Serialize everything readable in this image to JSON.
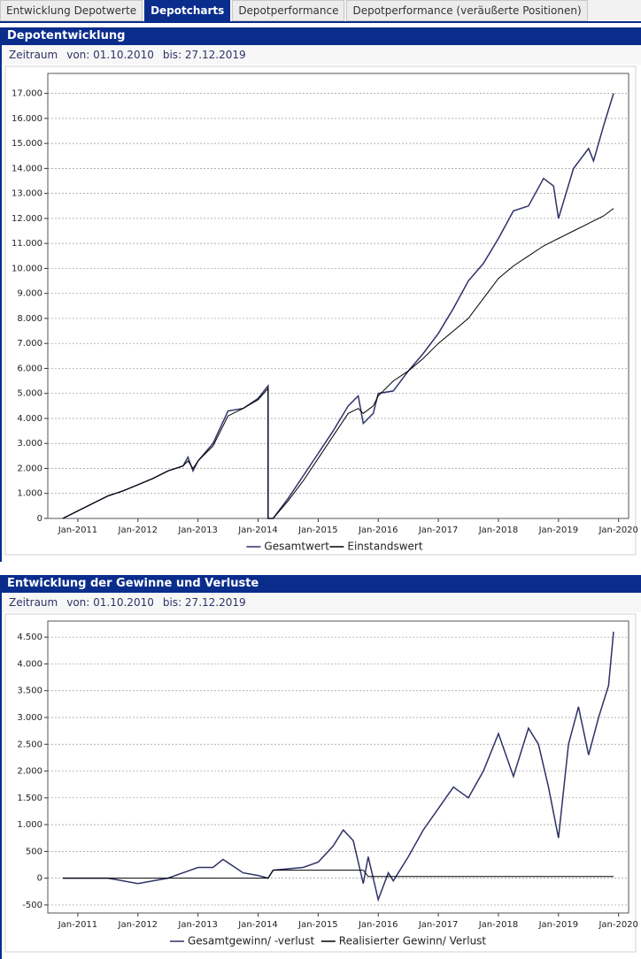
{
  "tabs": [
    {
      "label": "Entwicklung Depotwerte"
    },
    {
      "label": "Depotcharts"
    },
    {
      "label": "Depotperformance"
    },
    {
      "label": "Depotperformance (veräußerte Positionen)"
    }
  ],
  "active_tab": 1,
  "chart_data": [
    {
      "type": "line",
      "title": "Depotentwicklung",
      "period_label": "Zeitraum",
      "from_label": "von: 01.10.2010",
      "to_label": "bis: 27.12.2019",
      "x": [
        "2010-10",
        "2011-01",
        "2011-04",
        "2011-07",
        "2011-10",
        "2012-01",
        "2012-04",
        "2012-07",
        "2012-10",
        "2012-11",
        "2012-12",
        "2013-01",
        "2013-04",
        "2013-07",
        "2013-10",
        "2014-01",
        "2014-03",
        "2014-03",
        "2014-04",
        "2014-07",
        "2014-10",
        "2015-01",
        "2015-04",
        "2015-07",
        "2015-09",
        "2015-10",
        "2015-12",
        "2016-01",
        "2016-04",
        "2016-07",
        "2016-10",
        "2017-01",
        "2017-04",
        "2017-07",
        "2017-10",
        "2018-01",
        "2018-04",
        "2018-07",
        "2018-10",
        "2018-12",
        "2019-01",
        "2019-04",
        "2019-07",
        "2019-08",
        "2019-10",
        "2019-12"
      ],
      "series": [
        {
          "name": "Gesamtwert",
          "color": "#2e3266",
          "values": [
            0,
            300,
            600,
            900,
            1100,
            1350,
            1600,
            1900,
            2100,
            2450,
            1900,
            2300,
            3000,
            4300,
            4400,
            4800,
            5300,
            0,
            0,
            800,
            1700,
            2600,
            3500,
            4500,
            4900,
            3800,
            4200,
            5000,
            5100,
            5900,
            6600,
            7400,
            8400,
            9500,
            10200,
            11200,
            12300,
            12500,
            13600,
            13300,
            12000,
            14000,
            14800,
            14300,
            15700,
            17000
          ]
        },
        {
          "name": "Einstandswert",
          "color": "#000000",
          "values": [
            0,
            300,
            600,
            900,
            1100,
            1350,
            1600,
            1900,
            2100,
            2300,
            2000,
            2300,
            2900,
            4100,
            4400,
            4750,
            5200,
            0,
            0,
            700,
            1500,
            2400,
            3300,
            4200,
            4400,
            4200,
            4500,
            4900,
            5500,
            5900,
            6400,
            7000,
            7500,
            8000,
            8800,
            9600,
            10100,
            10500,
            10900,
            11100,
            11200,
            11500,
            11800,
            11900,
            12100,
            12400
          ]
        }
      ],
      "xlim": [
        "2010-07",
        "2020-03"
      ],
      "xticks": [
        {
          "value": "2011-01",
          "label": "Jan-2011"
        },
        {
          "value": "2012-01",
          "label": "Jan-2012"
        },
        {
          "value": "2013-01",
          "label": "Jan-2013"
        },
        {
          "value": "2014-01",
          "label": "Jan-2014"
        },
        {
          "value": "2015-01",
          "label": "Jan-2015"
        },
        {
          "value": "2016-01",
          "label": "Jan-2016"
        },
        {
          "value": "2017-01",
          "label": "Jan-2017"
        },
        {
          "value": "2018-01",
          "label": "Jan-2018"
        },
        {
          "value": "2019-01",
          "label": "Jan-2019"
        },
        {
          "value": "2020-01",
          "label": "Jan-2020"
        }
      ],
      "ylim": [
        0,
        17800
      ],
      "yticks": [
        0,
        {
          "value": 1000,
          "label": "1.000"
        },
        {
          "value": 2000,
          "label": "2.000"
        },
        {
          "value": 3000,
          "label": "3.000"
        },
        {
          "value": 4000,
          "label": "4.000"
        },
        {
          "value": 5000,
          "label": "5.000"
        },
        {
          "value": 6000,
          "label": "6.000"
        },
        {
          "value": 7000,
          "label": "7.000"
        },
        {
          "value": 8000,
          "label": "8.000"
        },
        {
          "value": 9000,
          "label": "9.000"
        },
        {
          "value": 10000,
          "label": "10.000"
        },
        {
          "value": 11000,
          "label": "11.000"
        },
        {
          "value": 12000,
          "label": "12.000"
        },
        {
          "value": 13000,
          "label": "13.000"
        },
        {
          "value": 14000,
          "label": "14.000"
        },
        {
          "value": 15000,
          "label": "15.000"
        },
        {
          "value": 16000,
          "label": "16.000"
        },
        {
          "value": 17000,
          "label": "17.000"
        }
      ],
      "grid": true
    },
    {
      "type": "line",
      "title": "Entwicklung der Gewinne und Verluste",
      "period_label": "Zeitraum",
      "from_label": "von: 01.10.2010",
      "to_label": "bis: 27.12.2019",
      "x": [
        "2010-10",
        "2011-07",
        "2012-01",
        "2012-07",
        "2012-10",
        "2013-01",
        "2013-04",
        "2013-06",
        "2013-10",
        "2014-01",
        "2014-03",
        "2014-04",
        "2014-10",
        "2015-01",
        "2015-04",
        "2015-06",
        "2015-08",
        "2015-10",
        "2015-11",
        "2016-01",
        "2016-03",
        "2016-04",
        "2016-07",
        "2016-10",
        "2017-01",
        "2017-04",
        "2017-07",
        "2017-10",
        "2018-01",
        "2018-04",
        "2018-07",
        "2018-09",
        "2018-11",
        "2019-01",
        "2019-03",
        "2019-05",
        "2019-07",
        "2019-09",
        "2019-11",
        "2019-12"
      ],
      "series": [
        {
          "name": "Gesamtgewinn/ -verlust",
          "color": "#2e3266",
          "values": [
            0,
            0,
            -100,
            0,
            100,
            200,
            200,
            350,
            100,
            50,
            0,
            150,
            200,
            300,
            600,
            900,
            700,
            -100,
            400,
            -400,
            100,
            -50,
            400,
            900,
            1300,
            1700,
            1500,
            2000,
            2700,
            1900,
            2800,
            2500,
            1700,
            750,
            2500,
            3200,
            2300,
            3000,
            3600,
            4600
          ]
        },
        {
          "name": "Realisierter Gewinn/ Verlust",
          "color": "#000000",
          "values": [
            0,
            0,
            0,
            0,
            0,
            0,
            0,
            0,
            0,
            0,
            0,
            150,
            150,
            150,
            150,
            150,
            150,
            150,
            30,
            30,
            30,
            30,
            30,
            30,
            30,
            30,
            30,
            30,
            30,
            30,
            30,
            30,
            30,
            30,
            30,
            30,
            30,
            30,
            30,
            30
          ]
        }
      ],
      "xlim": [
        "2010-07",
        "2020-03"
      ],
      "xticks": [
        {
          "value": "2011-01",
          "label": "Jan-2011"
        },
        {
          "value": "2012-01",
          "label": "Jan-2012"
        },
        {
          "value": "2013-01",
          "label": "Jan-2013"
        },
        {
          "value": "2014-01",
          "label": "Jan-2014"
        },
        {
          "value": "2015-01",
          "label": "Jan-2015"
        },
        {
          "value": "2016-01",
          "label": "Jan-2016"
        },
        {
          "value": "2017-01",
          "label": "Jan-2017"
        },
        {
          "value": "2018-01",
          "label": "Jan-2018"
        },
        {
          "value": "2019-01",
          "label": "Jan-2019"
        },
        {
          "value": "2020-01",
          "label": "Jan-2020"
        }
      ],
      "ylim": [
        -650,
        4800
      ],
      "yticks": [
        -500,
        0,
        500,
        {
          "value": 1000,
          "label": "1.000"
        },
        {
          "value": 1500,
          "label": "1.500"
        },
        {
          "value": 2000,
          "label": "2.000"
        },
        {
          "value": 2500,
          "label": "2.500"
        },
        {
          "value": 3000,
          "label": "3.000"
        },
        {
          "value": 3500,
          "label": "3.500"
        },
        {
          "value": 4000,
          "label": "4.000"
        },
        {
          "value": 4500,
          "label": "4.500"
        }
      ],
      "grid": true
    }
  ]
}
